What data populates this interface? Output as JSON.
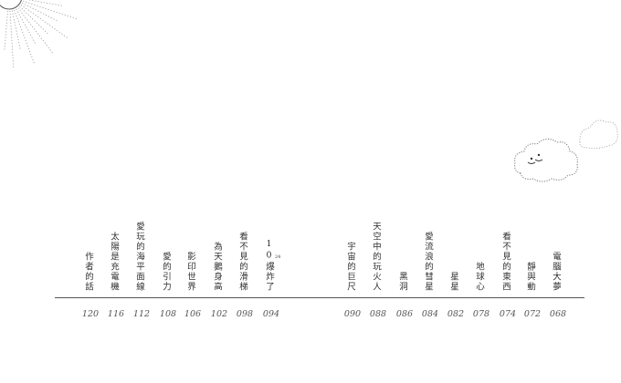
{
  "toc": {
    "entries": [
      {
        "title": "電腦大夢",
        "page": "068"
      },
      {
        "title": "靜與動",
        "page": "072"
      },
      {
        "title": "看不見的東西",
        "page": "074"
      },
      {
        "title": "地球心",
        "page": "078"
      },
      {
        "title": "星星",
        "page": "082"
      },
      {
        "title": "愛流浪的彗星",
        "page": "084"
      },
      {
        "title": "黑洞",
        "page": "086"
      },
      {
        "title": "天空中的玩火人",
        "page": "088"
      },
      {
        "title": "宇宙的巨尺",
        "page": "090"
      },
      {
        "title": "10爆炸了",
        "page": "094",
        "superscript": "24"
      },
      {
        "title": "看不見的滑梯",
        "page": "098"
      },
      {
        "title": "為天鵝身高",
        "page": "102"
      },
      {
        "title": "影印世界",
        "page": "106"
      },
      {
        "title": "愛的引力",
        "page": "108"
      },
      {
        "title": "愛玩的海平面線",
        "page": "112"
      },
      {
        "title": "太陽是充電機",
        "page": "116"
      },
      {
        "title": "作者的話",
        "page": "120"
      }
    ]
  },
  "decorations": [
    "sun-illustration",
    "cloud-illustration"
  ]
}
